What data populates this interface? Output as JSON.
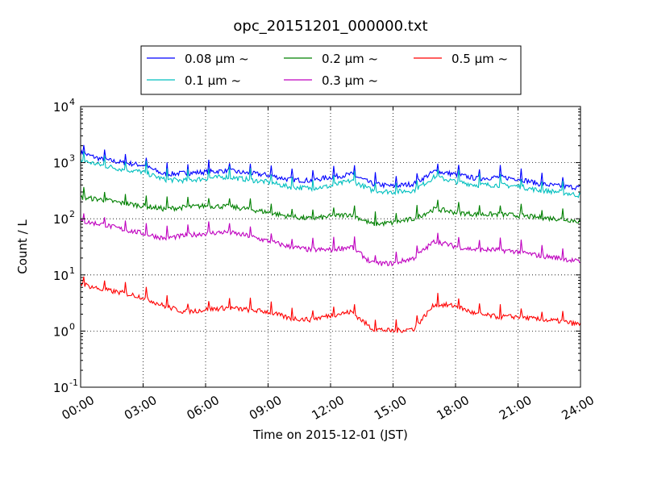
{
  "chart_data": {
    "type": "line",
    "title": "opc_20151201_000000.txt",
    "xlabel": "Time on 2015-12-01 (JST)",
    "ylabel": "Count / L",
    "y_scale": "log",
    "ylim_exponents": [
      -1,
      4
    ],
    "y_ticks": [
      {
        "base": "10",
        "exp": "-1"
      },
      {
        "base": "10",
        "exp": "0"
      },
      {
        "base": "10",
        "exp": "1"
      },
      {
        "base": "10",
        "exp": "2"
      },
      {
        "base": "10",
        "exp": "3"
      },
      {
        "base": "10",
        "exp": "4"
      }
    ],
    "x_ticks": [
      "00:00",
      "03:00",
      "06:00",
      "09:00",
      "12:00",
      "15:00",
      "18:00",
      "21:00",
      "24:00"
    ],
    "xlim_hours": [
      0,
      24
    ],
    "grid": true,
    "legend_placement": "top",
    "x_hours": [
      0,
      1,
      2,
      3,
      4,
      5,
      6,
      7,
      8,
      9,
      10,
      11,
      12,
      13,
      14,
      15,
      16,
      17,
      18,
      19,
      20,
      21,
      22,
      23,
      24
    ],
    "series": [
      {
        "name": "0.08 μm ~",
        "color": "#0000ff",
        "values": [
          1500,
          1150,
          1000,
          900,
          620,
          650,
          680,
          720,
          650,
          600,
          500,
          480,
          550,
          620,
          420,
          380,
          420,
          700,
          620,
          520,
          550,
          520,
          420,
          380,
          360
        ]
      },
      {
        "name": "0.1 μm ~",
        "color": "#00bfbf",
        "values": [
          1100,
          900,
          760,
          680,
          500,
          480,
          520,
          560,
          500,
          450,
          370,
          350,
          380,
          480,
          320,
          300,
          320,
          560,
          460,
          400,
          400,
          380,
          320,
          300,
          260
        ]
      },
      {
        "name": "0.2 μm ~",
        "color": "#008000",
        "values": [
          240,
          220,
          190,
          170,
          150,
          160,
          170,
          165,
          150,
          130,
          110,
          100,
          110,
          120,
          80,
          85,
          100,
          150,
          130,
          120,
          120,
          115,
          105,
          100,
          90
        ]
      },
      {
        "name": "0.3 μm ~",
        "color": "#bf00bf",
        "values": [
          90,
          80,
          65,
          55,
          45,
          50,
          55,
          58,
          50,
          40,
          32,
          28,
          28,
          32,
          16,
          16,
          20,
          40,
          32,
          28,
          28,
          26,
          22,
          20,
          17
        ]
      },
      {
        "name": "0.5 μm ~",
        "color": "#ff0000",
        "values": [
          7,
          5.5,
          4.8,
          4.0,
          2.8,
          2.2,
          2.4,
          2.6,
          2.4,
          2.2,
          1.7,
          1.6,
          1.9,
          2.2,
          1.1,
          1.0,
          1.1,
          3.0,
          2.8,
          2.0,
          1.8,
          1.8,
          1.6,
          1.5,
          1.3
        ]
      }
    ]
  }
}
